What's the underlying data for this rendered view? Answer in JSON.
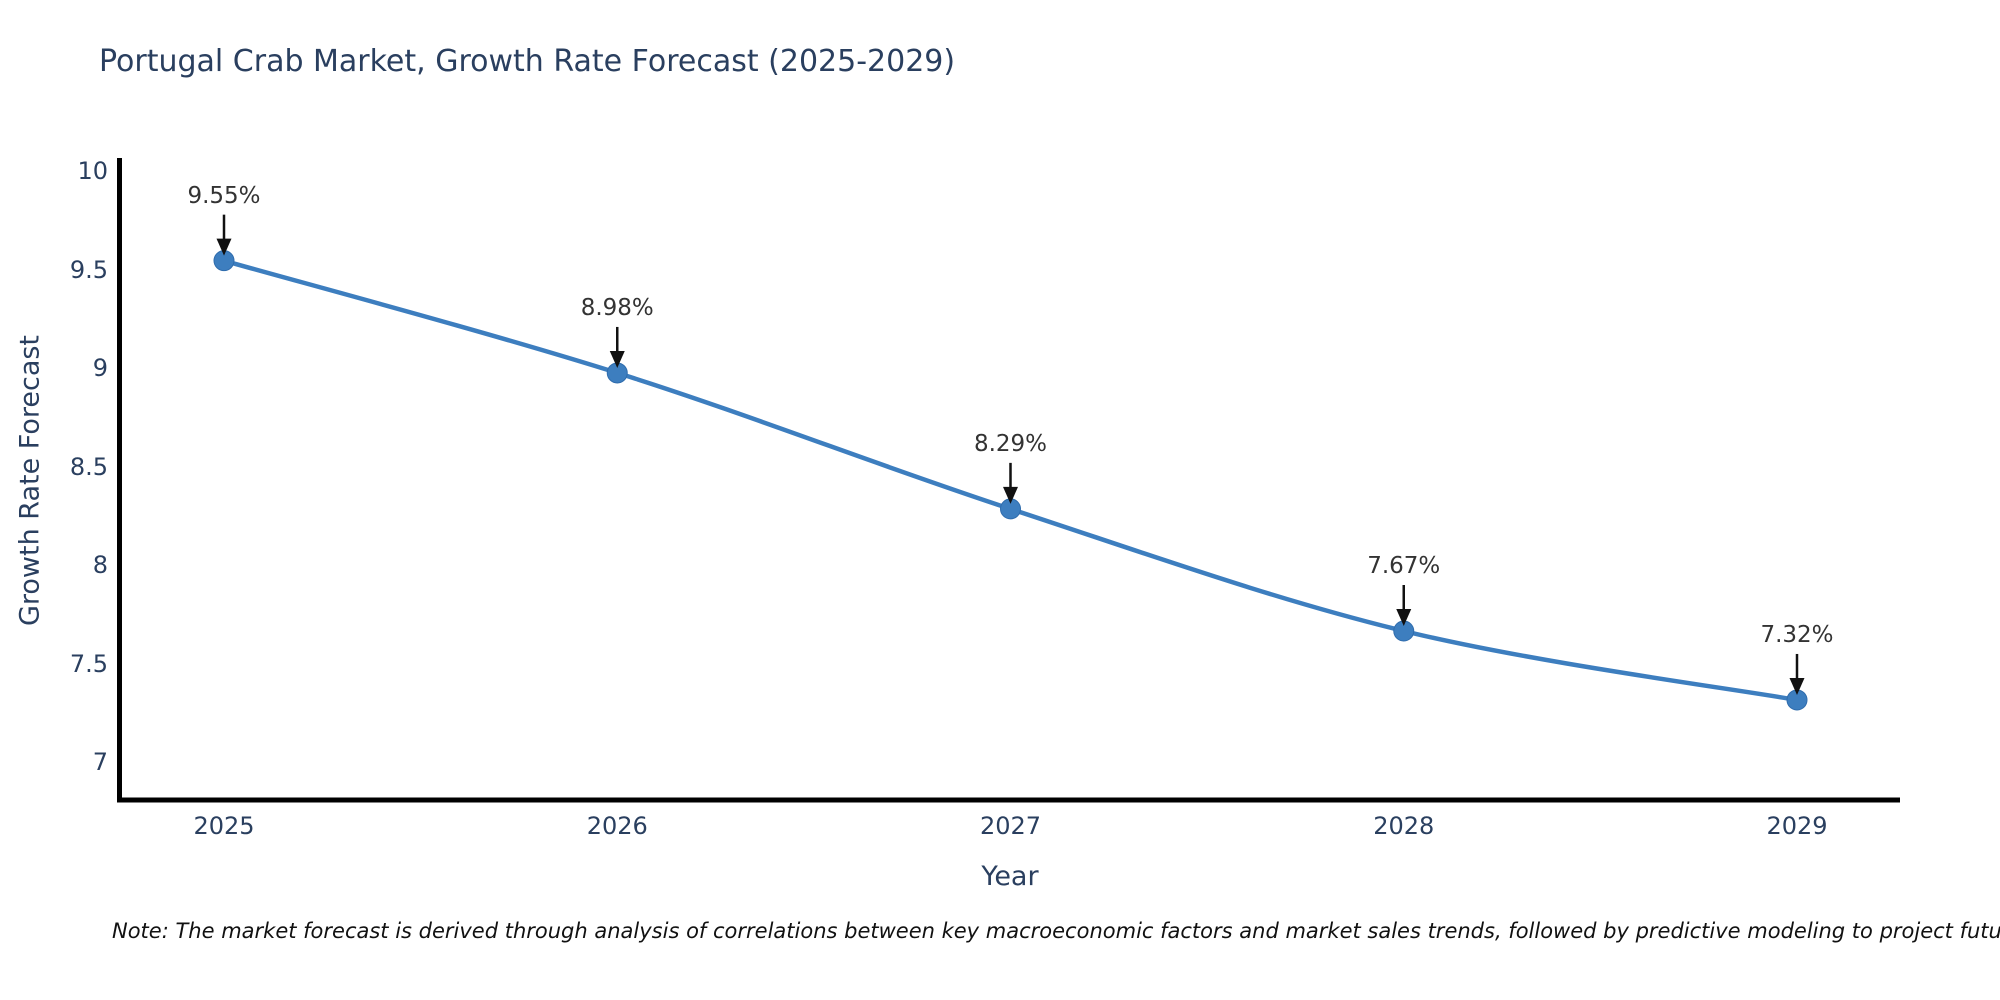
{
  "page": {
    "background": "#ffffff"
  },
  "chart_data": {
    "type": "line",
    "title": "Portugal Crab Market, Growth Rate Forecast (2025-2029)",
    "xlabel": "Year",
    "ylabel": "Growth Rate Forecast",
    "categories": [
      "2025",
      "2026",
      "2027",
      "2028",
      "2029"
    ],
    "x": [
      2025,
      2026,
      2027,
      2028,
      2029
    ],
    "values": [
      9.55,
      8.98,
      8.29,
      7.67,
      7.32
    ],
    "point_labels": [
      "9.55%",
      "8.98%",
      "8.29%",
      "7.67%",
      "7.32%"
    ],
    "y_ticks": [
      10,
      9.5,
      9,
      8.5,
      8,
      7.5,
      7
    ],
    "y_tick_labels": [
      "10",
      "9.5",
      "9",
      "8.5",
      "8",
      "7.5",
      "7"
    ],
    "ylim": [
      6.81,
      10.07
    ],
    "grid": false,
    "legend": "none",
    "line_shape": "spline",
    "annotations_have_arrows": true,
    "colors": {
      "line": "#3d7ebf",
      "marker": "#3d7ebf",
      "marker_edge": "#2f6cad",
      "axis_line": "#000000",
      "title_text": "#2a3f5f",
      "tick_text": "#2a3f5f",
      "annotation_text": "#333333",
      "arrow": "#111111",
      "note_text": "#111111",
      "background": "#ffffff"
    }
  },
  "note": {
    "text": "Note: The market forecast is derived through analysis of correlations between key macroeconomic factors and market sales trends, followed by predictive modeling to project future sales"
  }
}
